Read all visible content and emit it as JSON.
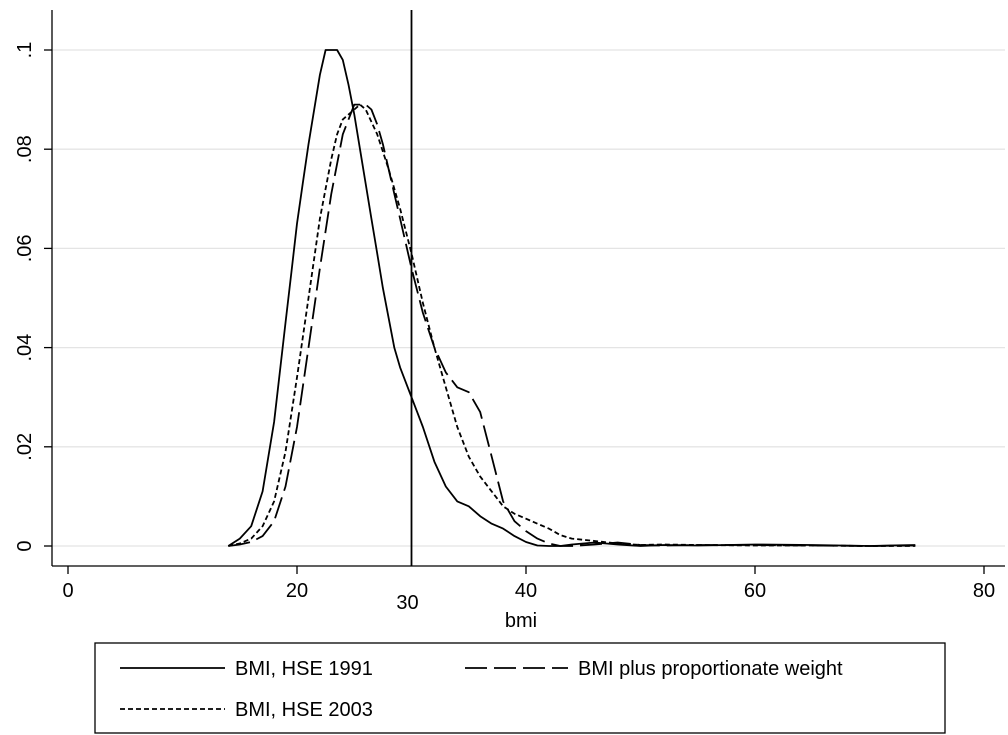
{
  "chart_data": {
    "type": "line",
    "xlabel": "bmi",
    "ylabel": "",
    "xlim": [
      0,
      80
    ],
    "ylim": [
      0,
      0.1
    ],
    "x_ticks": [
      {
        "value": 0,
        "label": "0"
      },
      {
        "value": 20,
        "label": "20"
      },
      {
        "value": 40,
        "label": "40"
      },
      {
        "value": 60,
        "label": "60"
      },
      {
        "value": 80,
        "label": "80"
      }
    ],
    "y_ticks": [
      {
        "value": 0,
        "label": "0"
      },
      {
        "value": 0.02,
        "label": ".02"
      },
      {
        "value": 0.04,
        "label": ".04"
      },
      {
        "value": 0.06,
        "label": ".06"
      },
      {
        "value": 0.08,
        "label": ".08"
      },
      {
        "value": 0.1,
        "label": ".1"
      }
    ],
    "grid": "horizontal",
    "reference_line": {
      "x": 30,
      "label": "30"
    },
    "legend_position": "bottom",
    "series": [
      {
        "name": "BMI, HSE 1991",
        "style": "solid",
        "x": [
          14,
          15,
          16,
          17,
          18,
          19,
          19.5,
          20,
          20.5,
          21,
          21.5,
          22,
          22.5,
          23,
          23.5,
          24,
          24.5,
          25,
          25.5,
          26,
          26.5,
          27,
          27.5,
          28,
          28.5,
          29,
          29.5,
          30,
          30.5,
          31,
          32,
          33,
          34,
          35,
          36,
          37,
          38,
          39,
          40,
          41,
          42,
          43,
          44,
          46,
          48,
          50,
          52,
          55,
          60,
          65,
          70,
          74
        ],
        "y": [
          0,
          0.0015,
          0.004,
          0.011,
          0.025,
          0.045,
          0.055,
          0.065,
          0.073,
          0.081,
          0.088,
          0.095,
          0.1,
          0.1,
          0.1,
          0.098,
          0.093,
          0.087,
          0.08,
          0.073,
          0.066,
          0.059,
          0.052,
          0.046,
          0.04,
          0.036,
          0.033,
          0.03,
          0.027,
          0.024,
          0.017,
          0.012,
          0.009,
          0.008,
          0.006,
          0.0045,
          0.0035,
          0.002,
          0.0008,
          0.0001,
          0,
          0,
          0.0003,
          0.0007,
          0.0003,
          0,
          0.0002,
          0.0001,
          0.0003,
          0.0002,
          0,
          0.0002
        ]
      },
      {
        "name": "BMI plus proportionate weight",
        "style": "longdash",
        "x": [
          14,
          15,
          16,
          17,
          18,
          19,
          20,
          21,
          22,
          23,
          24,
          25,
          25.5,
          26,
          26.5,
          27,
          27.5,
          28,
          28.5,
          29,
          29.5,
          30,
          31,
          32,
          33,
          34,
          35,
          36,
          37,
          38,
          39,
          40,
          41,
          42,
          43,
          44,
          46,
          48,
          50,
          52,
          55,
          60,
          65,
          70,
          74
        ],
        "y": [
          0,
          0.0003,
          0.0008,
          0.002,
          0.005,
          0.012,
          0.024,
          0.04,
          0.056,
          0.071,
          0.083,
          0.089,
          0.089,
          0.089,
          0.088,
          0.085,
          0.081,
          0.076,
          0.071,
          0.066,
          0.061,
          0.056,
          0.047,
          0.04,
          0.035,
          0.032,
          0.031,
          0.027,
          0.018,
          0.009,
          0.005,
          0.003,
          0.0015,
          0.0005,
          0,
          0,
          0.0003,
          0.0007,
          0.0002,
          0.0001,
          0.0002,
          0.0002,
          0.0001,
          0,
          0.0001
        ]
      },
      {
        "name": "BMI, HSE 2003",
        "style": "shortdash",
        "x": [
          14,
          15,
          16,
          17,
          18,
          19,
          20,
          21,
          22,
          23,
          23.5,
          24,
          24.5,
          25,
          25.5,
          26,
          27,
          28,
          29,
          30,
          31,
          32,
          33,
          34,
          35,
          36,
          37,
          38,
          39,
          40,
          41,
          42,
          43,
          44,
          46,
          48,
          50,
          52,
          55,
          60,
          65,
          70,
          74
        ],
        "y": [
          0,
          0.0005,
          0.0015,
          0.004,
          0.009,
          0.019,
          0.034,
          0.05,
          0.066,
          0.078,
          0.083,
          0.086,
          0.087,
          0.088,
          0.089,
          0.088,
          0.083,
          0.076,
          0.068,
          0.059,
          0.049,
          0.04,
          0.032,
          0.024,
          0.018,
          0.014,
          0.011,
          0.008,
          0.0065,
          0.0055,
          0.0045,
          0.0035,
          0.0022,
          0.0015,
          0.001,
          0.0005,
          0.0002,
          0.0003,
          0.0002,
          0.0001,
          0.0001,
          0,
          0
        ]
      }
    ]
  }
}
